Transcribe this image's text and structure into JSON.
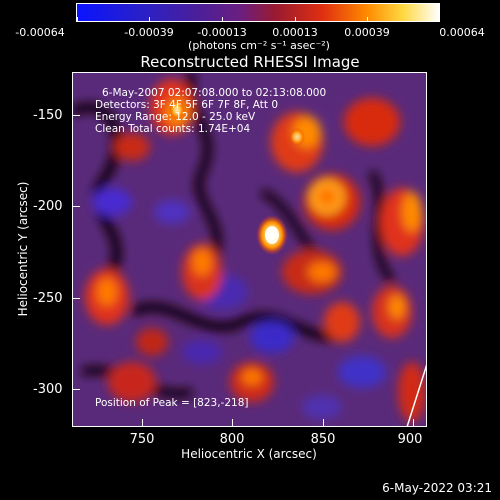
{
  "colorbar": {
    "labels": [
      "-0.00064",
      "-0.00039",
      "-0.00013",
      "0.00013",
      "0.00039",
      "0.00064"
    ],
    "unit": "(photons cm⁻² s⁻¹ asec⁻²)"
  },
  "plot": {
    "title": "Reconstructed RHESSI Image",
    "xlabel": "Heliocentric X (arcsec)",
    "ylabel": "Heliocentric Y (arcsec)",
    "xticks": [
      "750",
      "800",
      "850",
      "900"
    ],
    "yticks": [
      "-150",
      "-200",
      "-250",
      "-300"
    ],
    "info": {
      "line1": "6-May-2007 02:07:08.000 to 02:13:08.000",
      "line2": "Detectors: 3F 4F 5F 6F 7F 8F, Att 0",
      "line3": "Energy Range: 12.0 - 25.0 keV",
      "line4": "Clean     Total counts: 1.74E+04"
    },
    "peak": "Position of Peak = [823,-218]"
  },
  "timestamp": "6-May-2022 03:21",
  "colors": {
    "colormap": [
      "#1010ff",
      "#3a1aa0",
      "#6a2a8a",
      "#9a3030",
      "#e03a10",
      "#ff8a00",
      "#ffe060",
      "#ffffff"
    ]
  }
}
